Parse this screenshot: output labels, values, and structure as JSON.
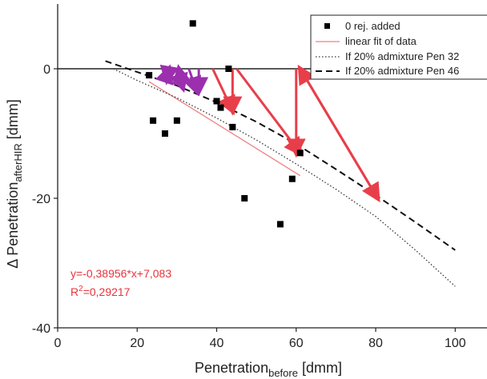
{
  "chart_data": {
    "type": "scatter",
    "xlabel": "Penetration",
    "xlabel_sub": "before",
    "xlabel_unit": " [dmm]",
    "ylabel": "Δ Penetration",
    "ylabel_sub": "afterHIR",
    "ylabel_unit": " [dmm]",
    "xlim": [
      0,
      108
    ],
    "ylim": [
      -40,
      10
    ],
    "xticks": [
      0,
      20,
      40,
      60,
      80,
      100
    ],
    "yticks": [
      0,
      -20,
      -40
    ],
    "grid": false,
    "legend_position": "top-right",
    "colors": {
      "points": "#000000",
      "fit": "#f08080",
      "red_arrows": "#e83e4a",
      "purple_arrows": "#9b2fae",
      "equation": "#e8333a"
    },
    "series": [
      {
        "name": "0 rej. added",
        "kind": "points",
        "x": [
          23,
          24,
          27,
          30,
          34,
          40,
          41,
          43,
          44,
          47,
          56,
          59,
          61
        ],
        "y": [
          -1,
          -8,
          -10,
          -8,
          7,
          -5,
          -6,
          0,
          -9,
          -20,
          -24,
          -17,
          -13
        ]
      },
      {
        "name": "linear fit of data",
        "kind": "fit-line",
        "x": [
          23,
          61
        ],
        "y": [
          -2,
          -16.5
        ]
      },
      {
        "name": "If 20% admixture Pen 32",
        "kind": "dotted",
        "x": [
          14,
          20,
          30,
          40,
          50,
          60,
          70,
          80,
          90,
          100
        ],
        "y": [
          0,
          -1.8,
          -4.5,
          -7.6,
          -11,
          -14.7,
          -18.6,
          -22.8,
          -28,
          -33.6
        ]
      },
      {
        "name": "If 20% admixture Pen 46",
        "kind": "dashed",
        "x": [
          12,
          20,
          30,
          40,
          50,
          60,
          70,
          80,
          90,
          100
        ],
        "y": [
          1.2,
          -0.5,
          -2.6,
          -5.2,
          -8.2,
          -11.6,
          -15.5,
          -19.5,
          -23.7,
          -28
        ]
      }
    ],
    "arrows_red": [
      {
        "x1": 44,
        "y1": 0,
        "x2": 44,
        "y2": -6.5
      },
      {
        "x1": 39,
        "y1": 0,
        "x2": 44,
        "y2": -6.5
      },
      {
        "x1": 45,
        "y1": 0,
        "x2": 61,
        "y2": -13
      },
      {
        "x1": 60,
        "y1": 0,
        "x2": 60,
        "y2": -13
      },
      {
        "x1": 61,
        "y1": 0,
        "x2": 80.5,
        "y2": -20
      },
      {
        "x1": 80.5,
        "y1": -20,
        "x2": 61,
        "y2": 0
      }
    ],
    "arrows_purple": [
      {
        "x1": 28,
        "y1": 0,
        "x2": 27.5,
        "y2": -1.8
      },
      {
        "x1": 27,
        "y1": -1.8,
        "x2": 28,
        "y2": 0
      },
      {
        "x1": 30,
        "y1": 0,
        "x2": 31.5,
        "y2": -3
      },
      {
        "x1": 31.5,
        "y1": -3,
        "x2": 30.5,
        "y2": 0
      },
      {
        "x1": 33,
        "y1": 0,
        "x2": 35,
        "y2": -3.5
      },
      {
        "x1": 35.5,
        "y1": 0,
        "x2": 35.5,
        "y2": -3.5
      }
    ],
    "equation_line1": "y=-0,38956*x+7,083",
    "equation_line2_prefix": "R",
    "equation_line2_sup": "2",
    "equation_line2_value": "=0,29217"
  }
}
